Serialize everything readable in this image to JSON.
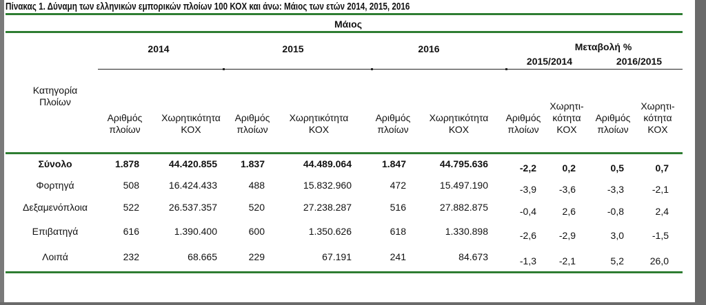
{
  "title": "Πίνακας 1. Δύναμη των ελληνικών εμπορικών πλοίων 100 ΚΟΧ και άνω: Μάιος των ετών 2014, 2015, 2016",
  "header": {
    "month": "Μάιος",
    "category_label": "Κατηγορία\nΠλοίων",
    "years": [
      "2014",
      "2015",
      "2016"
    ],
    "change_label": "Μεταβολή %",
    "change_periods": [
      "2015/2014",
      "2016/2015"
    ],
    "col_count": "Αριθμός\nπλοίων",
    "col_capacity": "Χωρητικότητα\nΚΟΧ",
    "col_capacity_split": "Χωρητι-\nκότητα\nΚΟΧ"
  },
  "rows": [
    {
      "category": "Σύνολο",
      "bold": true,
      "n2014": "1.878",
      "k2014": "44.420.855",
      "n2015": "1.837",
      "k2015": "44.489.064",
      "n2016": "1.847",
      "k2016": "44.795.636",
      "c1n": "-2,2",
      "c1k": "0,2",
      "c2n": "0,5",
      "c2k": "0,7"
    },
    {
      "category": "Φορτηγά",
      "n2014": "508",
      "k2014": "16.424.433",
      "n2015": "488",
      "k2015": "15.832.960",
      "n2016": "472",
      "k2016": "15.497.190",
      "c1n": "-3,9",
      "c1k": "-3,6",
      "c2n": "-3,3",
      "c2k": "-2,1"
    },
    {
      "category": "Δεξαμενόπλοια",
      "n2014": "522",
      "k2014": "26.537.357",
      "n2015": "520",
      "k2015": "27.238.287",
      "n2016": "516",
      "k2016": "27.882.875",
      "c1n": "-0,4",
      "c1k": "2,6",
      "c2n": "-0,8",
      "c2k": "2,4"
    },
    {
      "category": "Επιβατηγά",
      "n2014": "616",
      "k2014": "1.390.400",
      "n2015": "600",
      "k2015": "1.350.626",
      "n2016": "618",
      "k2016": "1.330.898",
      "c1n": "-2,6",
      "c1k": "-2,9",
      "c2n": "3,0",
      "c2k": "-1,5"
    },
    {
      "category": "Λοιπά",
      "n2014": "232",
      "k2014": "68.665",
      "n2015": "229",
      "k2015": "67.191",
      "n2016": "241",
      "k2016": "84.673",
      "c1n": "-1,3",
      "c1k": "-2,1",
      "c2n": "5,2",
      "c2k": "26,0"
    }
  ],
  "colors": {
    "rule": "#2e7d32",
    "frame": "#6a6a6a"
  }
}
